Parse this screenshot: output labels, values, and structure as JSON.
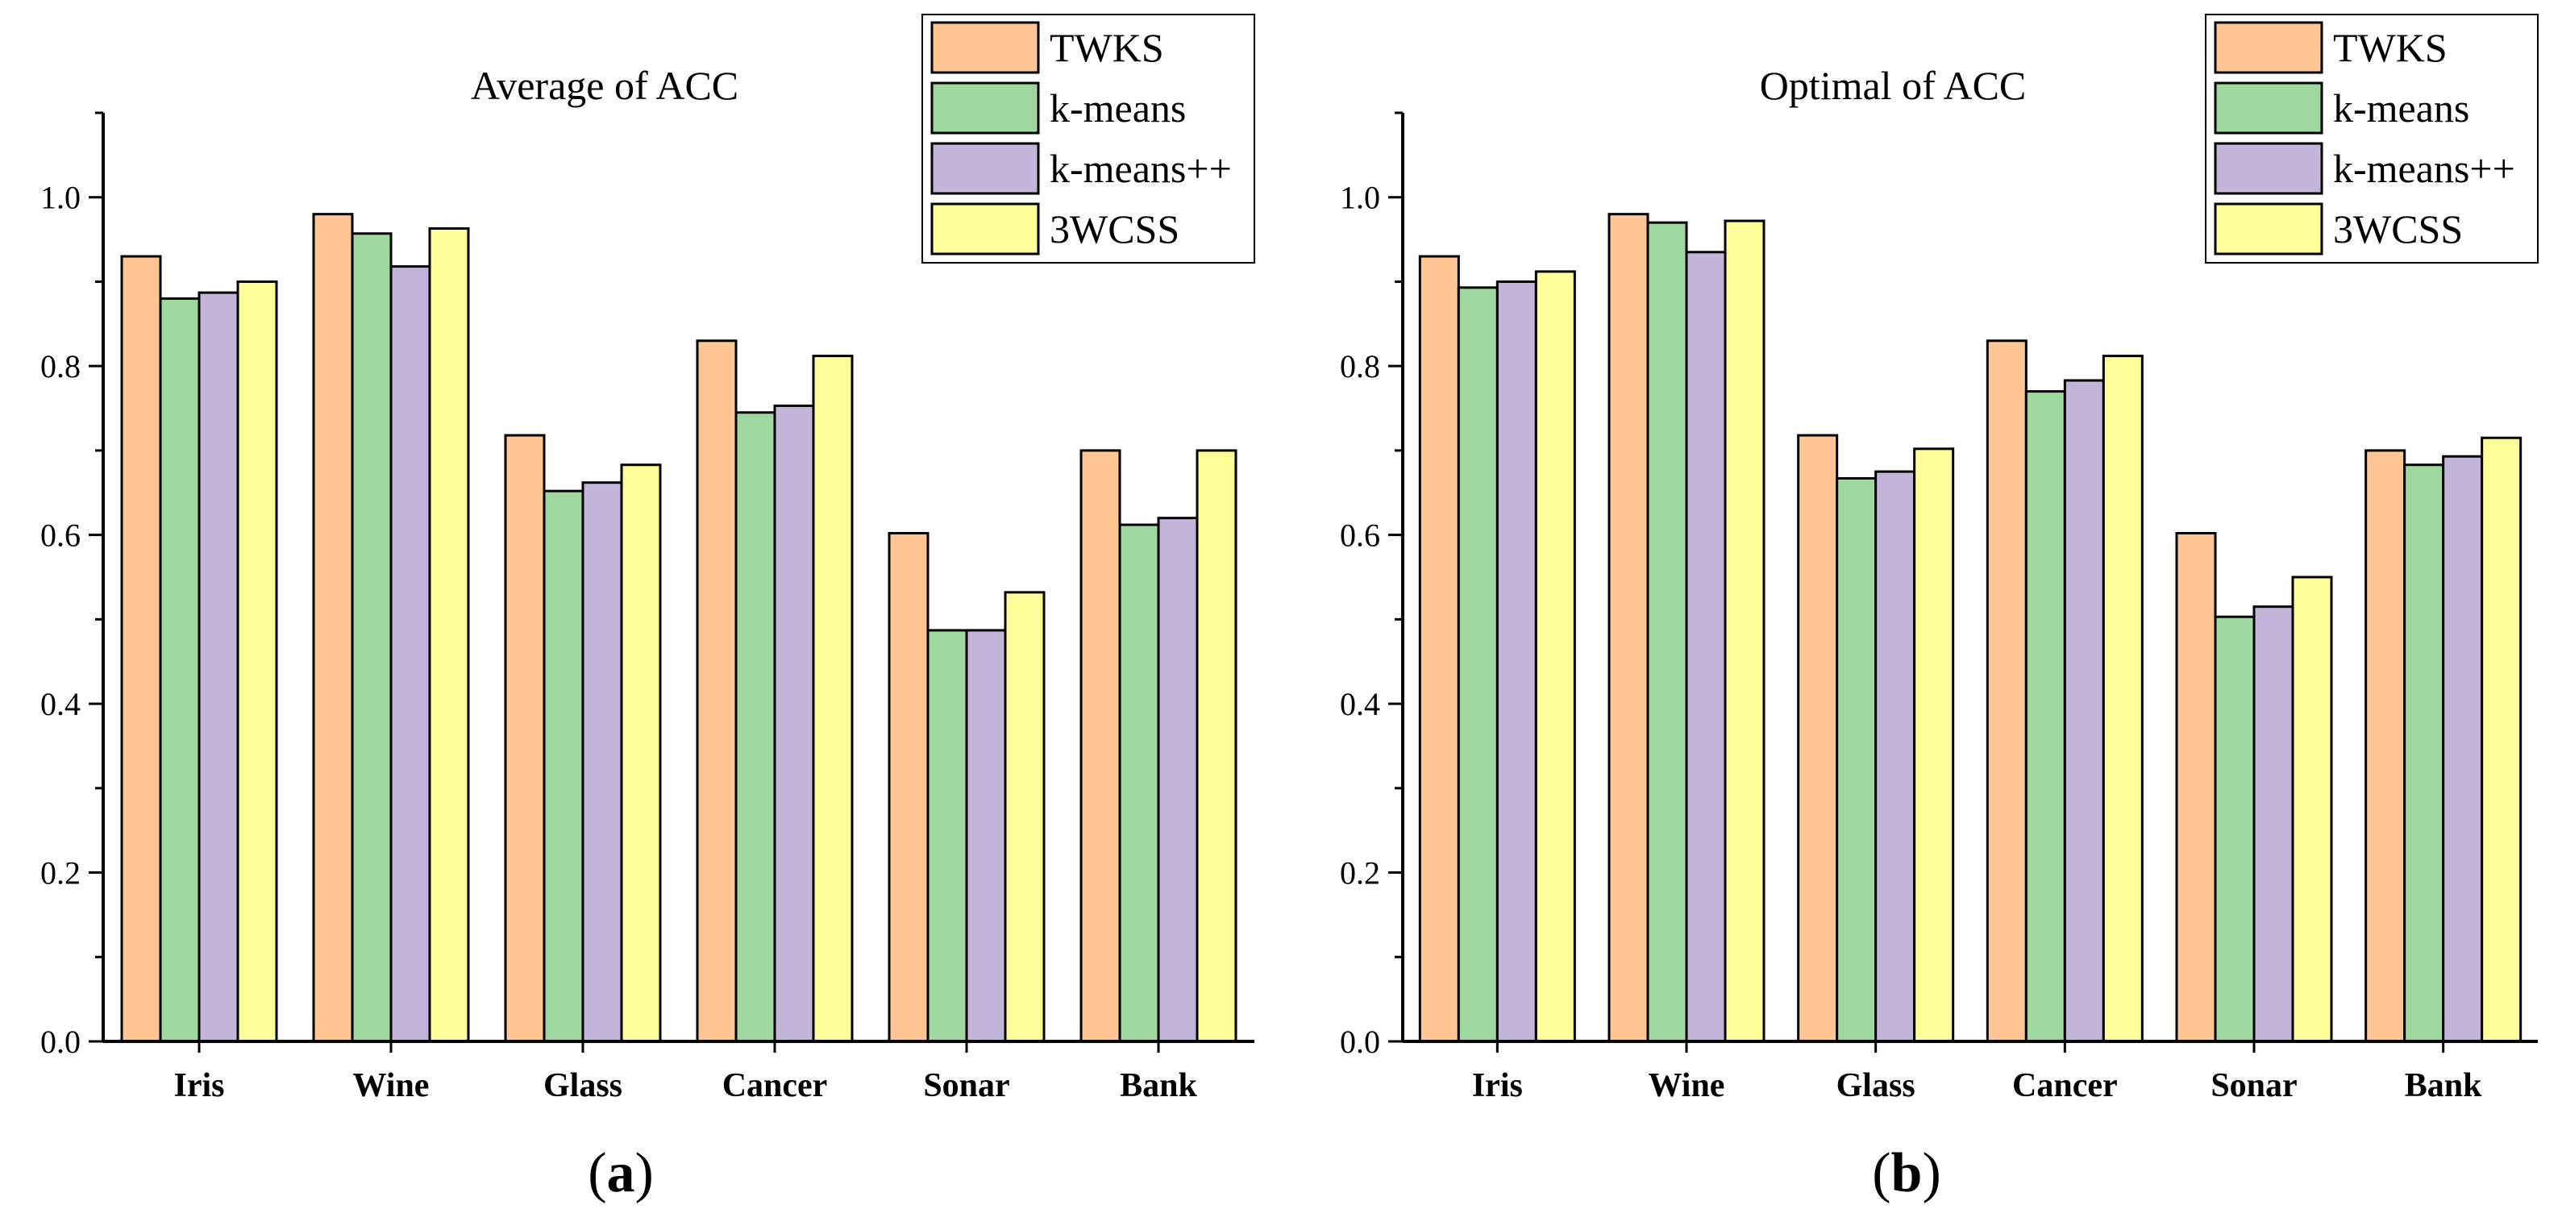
{
  "chart_data": [
    {
      "type": "bar",
      "title": "Average of ACC",
      "panel_label": "a",
      "categories": [
        "Iris",
        "Wine",
        "Glass",
        "Cancer",
        "Sonar",
        "Bank"
      ],
      "series": [
        {
          "name": "TWKS",
          "color": "#FFC593",
          "values": [
            0.93,
            0.98,
            0.718,
            0.83,
            0.602,
            0.7
          ]
        },
        {
          "name": "k-means",
          "color": "#9ED89E",
          "values": [
            0.88,
            0.957,
            0.652,
            0.745,
            0.487,
            0.612
          ]
        },
        {
          "name": "k-means++",
          "color": "#C3B4DA",
          "values": [
            0.887,
            0.918,
            0.662,
            0.753,
            0.487,
            0.62
          ]
        },
        {
          "name": "3WCSS",
          "color": "#FFFF99",
          "values": [
            0.9,
            0.963,
            0.683,
            0.812,
            0.532,
            0.7
          ]
        }
      ],
      "ylim": [
        0,
        1.1
      ],
      "yticks": [
        "0.0",
        "0.2",
        "0.4",
        "0.6",
        "0.8",
        "1.0"
      ],
      "legend_position": "top-right",
      "grid": false
    },
    {
      "type": "bar",
      "title": "Optimal of ACC",
      "panel_label": "b",
      "categories": [
        "Iris",
        "Wine",
        "Glass",
        "Cancer",
        "Sonar",
        "Bank"
      ],
      "series": [
        {
          "name": "TWKS",
          "color": "#FFC593",
          "values": [
            0.93,
            0.98,
            0.718,
            0.83,
            0.602,
            0.7
          ]
        },
        {
          "name": "k-means",
          "color": "#9ED89E",
          "values": [
            0.893,
            0.97,
            0.667,
            0.77,
            0.503,
            0.683
          ]
        },
        {
          "name": "k-means++",
          "color": "#C3B4DA",
          "values": [
            0.9,
            0.935,
            0.675,
            0.783,
            0.515,
            0.693
          ]
        },
        {
          "name": "3WCSS",
          "color": "#FFFF99",
          "values": [
            0.912,
            0.972,
            0.702,
            0.812,
            0.55,
            0.715
          ]
        }
      ],
      "ylim": [
        0,
        1.1
      ],
      "yticks": [
        "0.0",
        "0.2",
        "0.4",
        "0.6",
        "0.8",
        "1.0"
      ],
      "legend_position": "top-right",
      "grid": false
    }
  ]
}
